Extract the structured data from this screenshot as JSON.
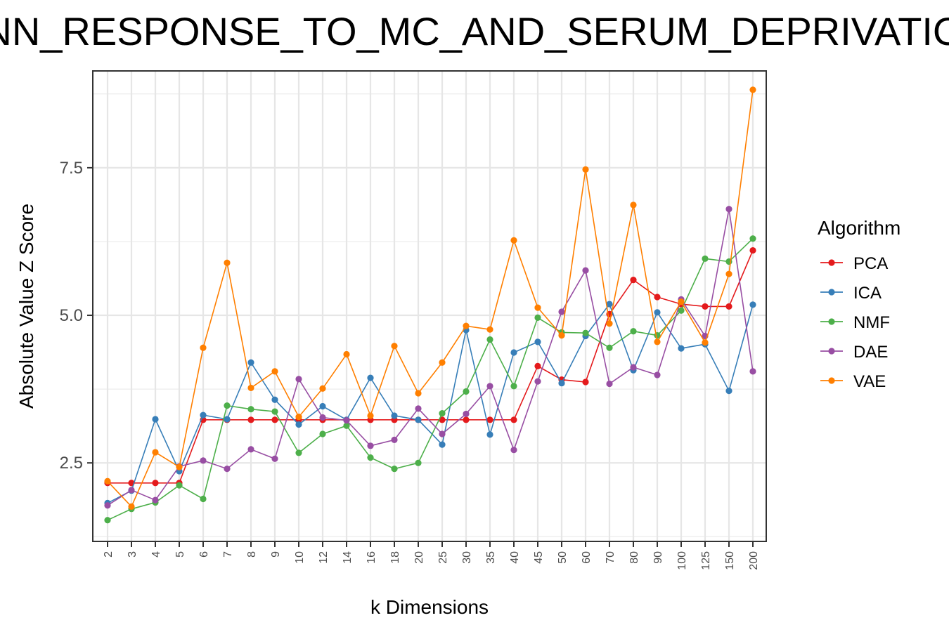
{
  "chart_data": {
    "type": "line",
    "title": "ANN_RESPONSE_TO_MC_AND_SERUM_DEPRIVATION",
    "xlabel": "k Dimensions",
    "ylabel": "Absolute Value Z Score",
    "categories": [
      "2",
      "3",
      "4",
      "5",
      "6",
      "7",
      "8",
      "9",
      "10",
      "12",
      "14",
      "16",
      "18",
      "20",
      "25",
      "30",
      "35",
      "40",
      "45",
      "50",
      "60",
      "70",
      "80",
      "90",
      "100",
      "125",
      "150",
      "200"
    ],
    "yticks": [
      "2.5",
      "5.0",
      "7.5"
    ],
    "ylim": [
      1.17,
      9.14
    ],
    "grid": true,
    "legend_title": "Algorithm",
    "legend_position": "right",
    "series": [
      {
        "name": "PCA",
        "color": "#E41A1C",
        "values": [
          2.16,
          2.16,
          2.16,
          2.16,
          3.23,
          3.23,
          3.23,
          3.23,
          3.23,
          3.23,
          3.23,
          3.23,
          3.23,
          3.23,
          3.23,
          3.23,
          3.23,
          3.23,
          4.14,
          3.91,
          3.87,
          5.02,
          5.6,
          5.31,
          5.19,
          5.15,
          5.15,
          6.1
        ]
      },
      {
        "name": "ICA",
        "color": "#377EB8",
        "values": [
          1.82,
          2.03,
          3.24,
          2.36,
          3.31,
          3.24,
          4.2,
          3.57,
          3.15,
          3.46,
          3.23,
          3.94,
          3.3,
          3.23,
          2.81,
          4.75,
          2.98,
          4.37,
          4.55,
          3.85,
          4.65,
          5.19,
          4.07,
          5.05,
          4.44,
          4.51,
          3.72,
          5.18
        ]
      },
      {
        "name": "NMF",
        "color": "#4DAF4A",
        "values": [
          1.53,
          1.72,
          1.83,
          2.12,
          1.89,
          3.47,
          3.41,
          3.37,
          2.67,
          2.99,
          3.13,
          2.59,
          2.4,
          2.5,
          3.34,
          3.71,
          4.59,
          3.8,
          4.96,
          4.71,
          4.7,
          4.45,
          4.73,
          4.66,
          5.08,
          5.96,
          5.91,
          6.3
        ]
      },
      {
        "name": "DAE",
        "color": "#984EA3",
        "values": [
          1.78,
          2.04,
          1.87,
          2.44,
          2.54,
          2.4,
          2.73,
          2.57,
          3.92,
          3.27,
          3.22,
          2.79,
          2.89,
          3.42,
          2.99,
          3.33,
          3.8,
          2.72,
          3.88,
          5.06,
          5.76,
          3.84,
          4.12,
          3.99,
          5.27,
          4.65,
          6.8,
          4.05
        ]
      },
      {
        "name": "VAE",
        "color": "#FF7F00",
        "values": [
          2.19,
          1.76,
          2.68,
          2.43,
          4.45,
          5.89,
          3.77,
          4.05,
          3.28,
          3.76,
          4.34,
          3.3,
          4.48,
          3.68,
          4.2,
          4.82,
          4.76,
          6.27,
          5.13,
          4.66,
          7.47,
          4.86,
          6.87,
          4.55,
          5.23,
          4.54,
          5.7,
          8.82
        ]
      }
    ]
  }
}
